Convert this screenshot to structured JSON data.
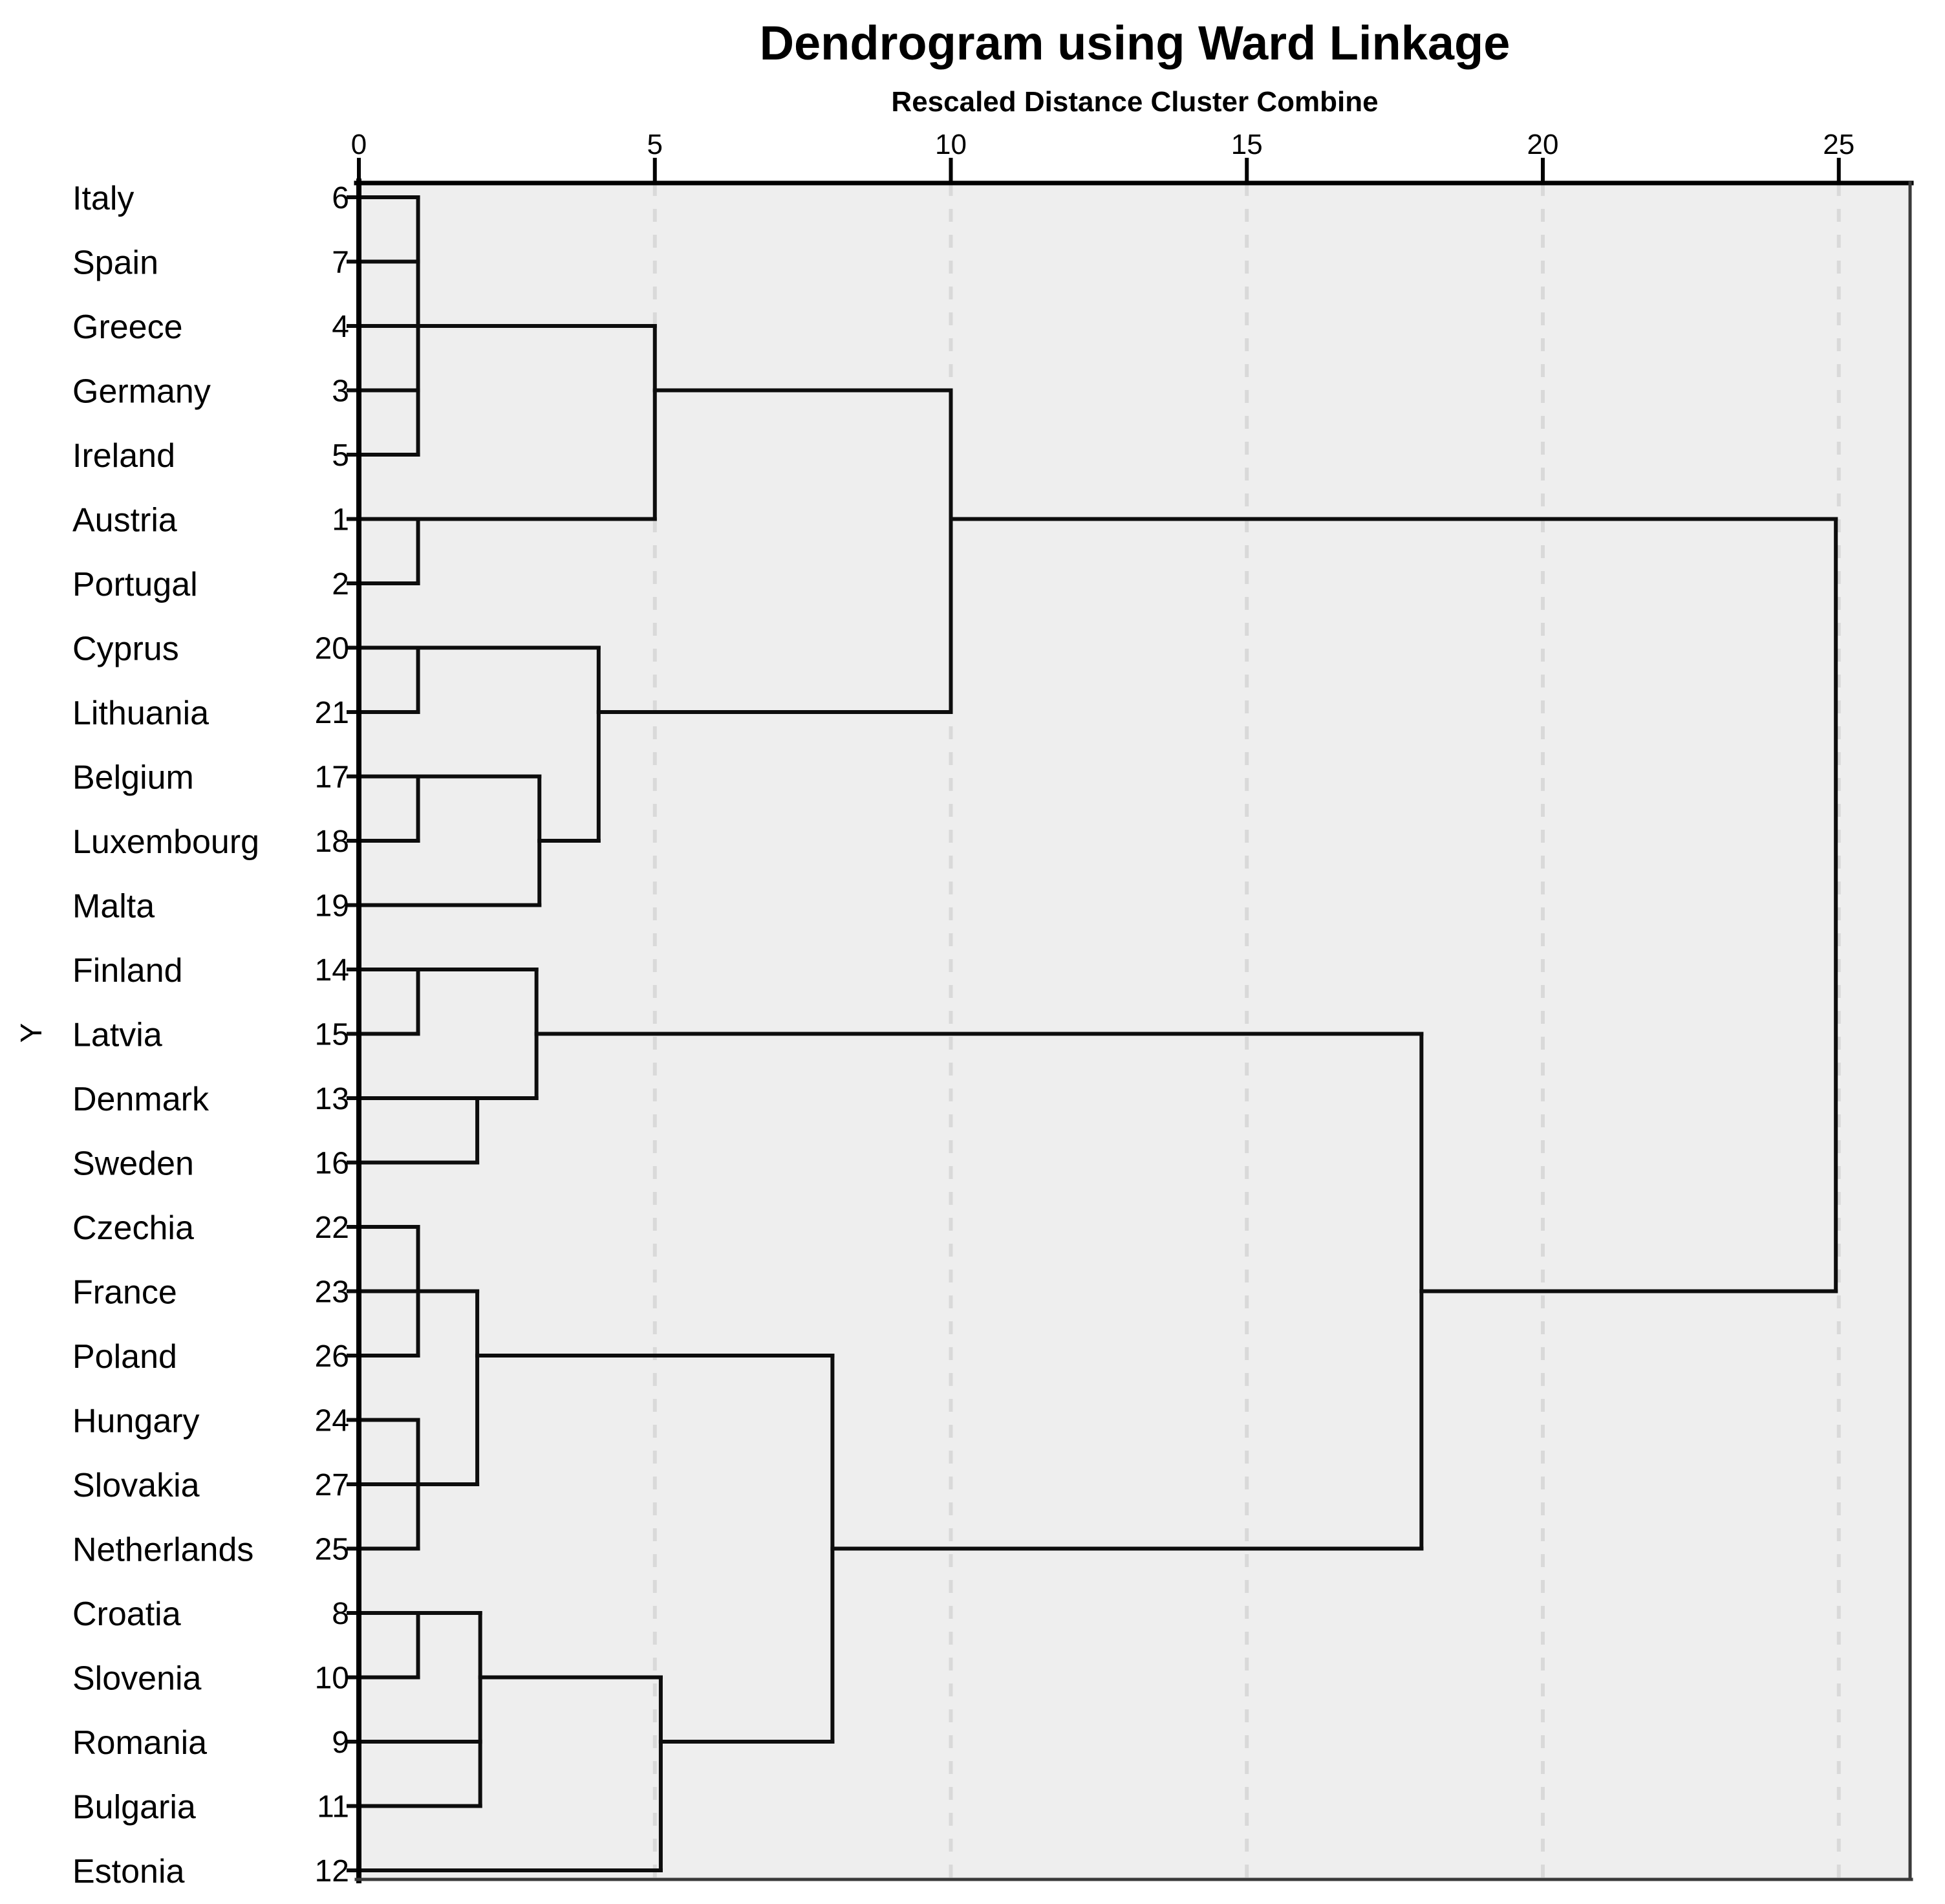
{
  "title": "Dendrogram using Ward Linkage",
  "subtitle": "Rescaled Distance Cluster Combine",
  "y_axis_label": "Y",
  "x_axis": {
    "min": 0,
    "max": 25,
    "tick_values": [
      0,
      5,
      10,
      15,
      20,
      25
    ]
  },
  "colors": {
    "line": "#0d0d0d",
    "plot_bg": "#eeeeee",
    "gridline": "#d9d9d9",
    "frame_dark": "#000000",
    "frame_light": "#3a3a3a",
    "text": "#000000"
  },
  "chart_data": {
    "type": "dendrogram",
    "orientation": "horizontal",
    "linkage": "Ward",
    "title": "Dendrogram using Ward Linkage",
    "xlabel": "Rescaled Distance Cluster Combine",
    "xlim": [
      0,
      25
    ],
    "grid": "dashed-vertical",
    "leaves": [
      {
        "label": "Italy",
        "case": 6,
        "join_x": 1
      },
      {
        "label": "Spain",
        "case": 7,
        "join_x": 1
      },
      {
        "label": "Greece",
        "case": 4,
        "join_x": 1
      },
      {
        "label": "Germany",
        "case": 3,
        "join_x": 1
      },
      {
        "label": "Ireland",
        "case": 5,
        "join_x": 1
      },
      {
        "label": "Austria",
        "case": 1,
        "join_x": 1
      },
      {
        "label": "Portugal",
        "case": 2,
        "join_x": 1
      },
      {
        "label": "Cyprus",
        "case": 20,
        "join_x": 1
      },
      {
        "label": "Lithuania",
        "case": 21,
        "join_x": 1
      },
      {
        "label": "Belgium",
        "case": 17,
        "join_x": 1
      },
      {
        "label": "Luxembourg",
        "case": 18,
        "join_x": 1
      },
      {
        "label": "Malta",
        "case": 19,
        "join_x": 3.05
      },
      {
        "label": "Finland",
        "case": 14,
        "join_x": 1
      },
      {
        "label": "Latvia",
        "case": 15,
        "join_x": 1
      },
      {
        "label": "Denmark",
        "case": 13,
        "join_x": 2
      },
      {
        "label": "Sweden",
        "case": 16,
        "join_x": 2
      },
      {
        "label": "Czechia",
        "case": 22,
        "join_x": 1
      },
      {
        "label": "France",
        "case": 23,
        "join_x": 1
      },
      {
        "label": "Poland",
        "case": 26,
        "join_x": 1
      },
      {
        "label": "Hungary",
        "case": 24,
        "join_x": 1
      },
      {
        "label": "Slovakia",
        "case": 27,
        "join_x": 1
      },
      {
        "label": "Netherlands",
        "case": 25,
        "join_x": 1
      },
      {
        "label": "Croatia",
        "case": 8,
        "join_x": 1
      },
      {
        "label": "Slovenia",
        "case": 10,
        "join_x": 1
      },
      {
        "label": "Romania",
        "case": 9,
        "join_x": 2.05
      },
      {
        "label": "Bulgaria",
        "case": 11,
        "join_x": 2.05
      },
      {
        "label": "Estonia",
        "case": 12,
        "join_x": 5.1
      }
    ],
    "merges": [
      {
        "x": 1.0,
        "top_row": 0,
        "bottom_row": 4,
        "out_row": 2,
        "out_to_x": 5.0
      },
      {
        "x": 1.0,
        "top_row": 5,
        "bottom_row": 6,
        "out_row": 5,
        "out_to_x": 5.0
      },
      {
        "x": 5.0,
        "top_row": 2,
        "bottom_row": 5,
        "out_row": 3,
        "out_to_x": 10.0
      },
      {
        "x": 1.0,
        "top_row": 7,
        "bottom_row": 8,
        "out_row": 7,
        "out_to_x": 4.05
      },
      {
        "x": 1.0,
        "top_row": 9,
        "bottom_row": 10,
        "out_row": 9,
        "out_to_x": 3.05
      },
      {
        "x": 3.05,
        "top_row": 9,
        "bottom_row": 11,
        "out_row": 10,
        "out_to_x": 4.05
      },
      {
        "x": 4.05,
        "top_row": 7,
        "bottom_row": 10,
        "out_row": 8,
        "out_to_x": 10.0
      },
      {
        "x": 10.0,
        "top_row": 3,
        "bottom_row": 8,
        "out_row": 5,
        "out_to_x": 24.95
      },
      {
        "x": 1.0,
        "top_row": 12,
        "bottom_row": 13,
        "out_row": 12,
        "out_to_x": 3.0
      },
      {
        "x": 2.0,
        "top_row": 14,
        "bottom_row": 15,
        "out_row": 14,
        "out_to_x": 3.0
      },
      {
        "x": 3.0,
        "top_row": 12,
        "bottom_row": 14,
        "out_row": 13,
        "out_to_x": 17.95
      },
      {
        "x": 1.0,
        "top_row": 16,
        "bottom_row": 18,
        "out_row": 17,
        "out_to_x": 2.0
      },
      {
        "x": 1.0,
        "top_row": 19,
        "bottom_row": 21,
        "out_row": 20,
        "out_to_x": 2.0
      },
      {
        "x": 2.0,
        "top_row": 17,
        "bottom_row": 20,
        "out_row": 18,
        "out_to_x": 8.0
      },
      {
        "x": 1.0,
        "top_row": 22,
        "bottom_row": 23,
        "out_row": 22,
        "out_to_x": 2.05
      },
      {
        "x": 2.05,
        "top_row": 22,
        "bottom_row": 25,
        "out_row": 23,
        "out_to_x": 5.1
      },
      {
        "x": 5.1,
        "top_row": 23,
        "bottom_row": 26,
        "out_row": 24,
        "out_to_x": 8.0
      },
      {
        "x": 8.0,
        "top_row": 18,
        "bottom_row": 24,
        "out_row": 21,
        "out_to_x": 17.95
      },
      {
        "x": 17.95,
        "top_row": 13,
        "bottom_row": 21,
        "out_row": 17,
        "out_to_x": 24.95
      },
      {
        "x": 24.95,
        "top_row": 5,
        "bottom_row": 17,
        "out_row": null,
        "out_to_x": null
      }
    ]
  }
}
